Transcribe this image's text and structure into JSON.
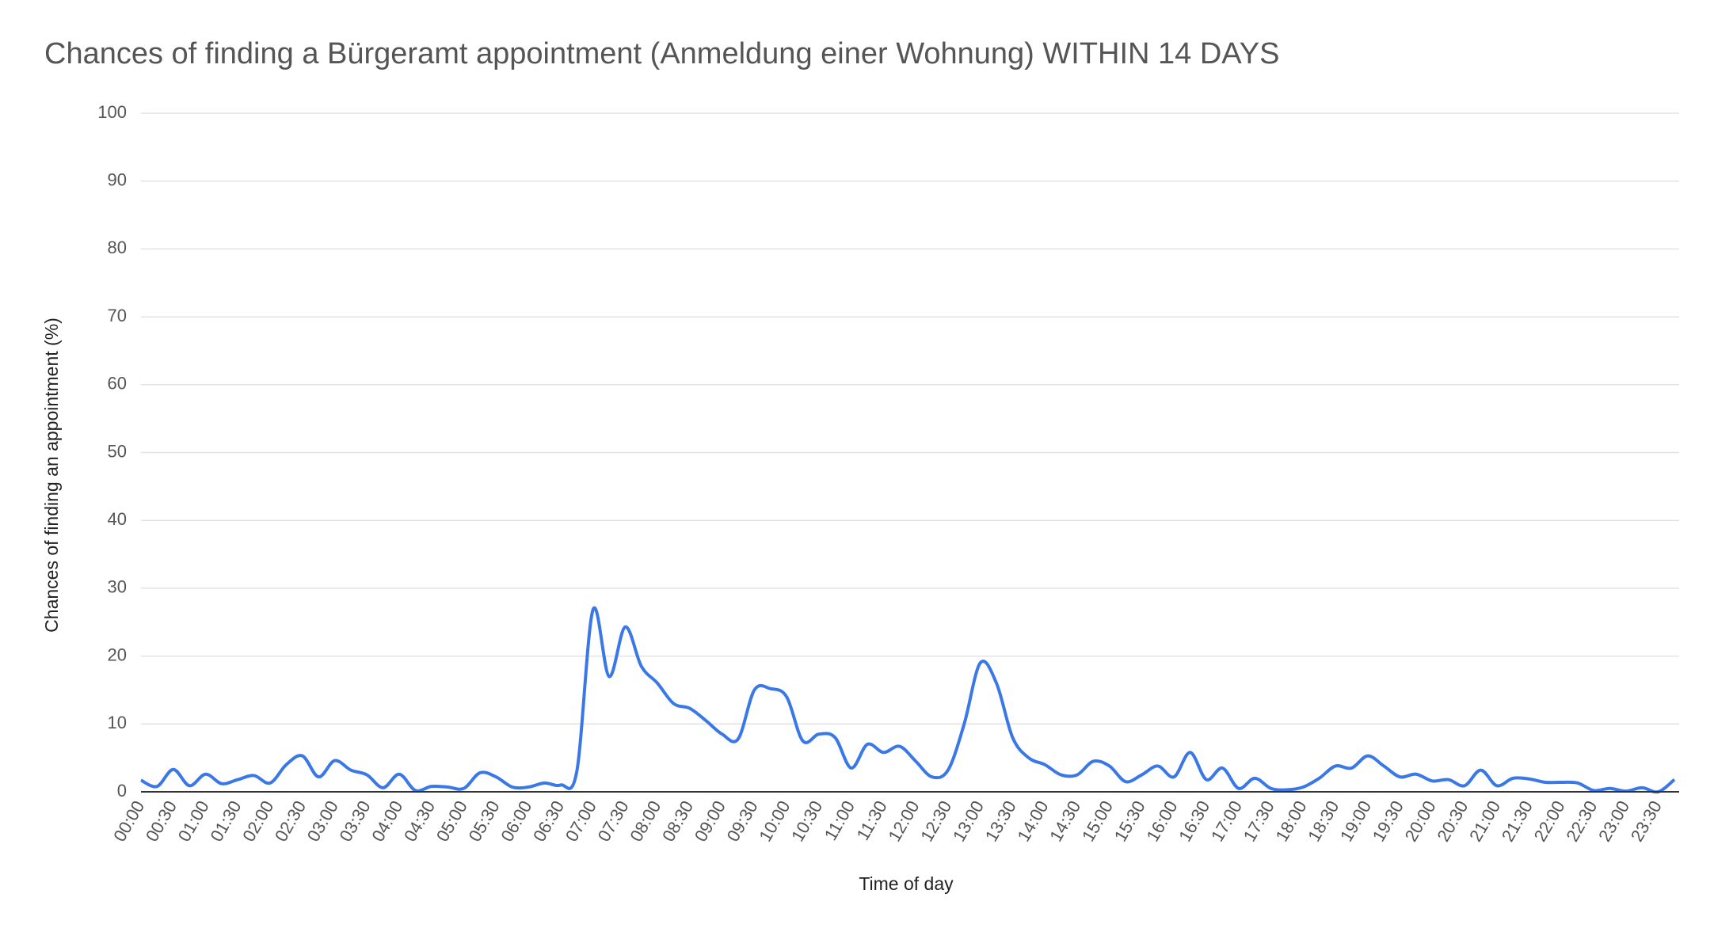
{
  "chart_data": {
    "type": "line",
    "title": "Chances of finding a Bürgeramt appointment (Anmeldung einer Wohnung) WITHIN 14 DAYS",
    "x_label": "Time of day",
    "y_label": "Chances of finding an appointment (%)",
    "categories": [
      "00:00",
      null,
      "00:30",
      null,
      "01:00",
      null,
      "01:30",
      null,
      "02:00",
      null,
      "02:30",
      null,
      "03:00",
      null,
      "03:30",
      null,
      "04:00",
      null,
      "04:30",
      null,
      "05:00",
      null,
      "05:30",
      null,
      "06:00",
      null,
      "06:30",
      null,
      "07:00",
      null,
      "07:30",
      null,
      "08:00",
      null,
      "08:30",
      null,
      "09:00",
      null,
      "09:30",
      null,
      "10:00",
      null,
      "10:30",
      null,
      "11:00",
      null,
      "11:30",
      null,
      "12:00",
      null,
      "12:30",
      null,
      "13:00",
      null,
      "13:30",
      null,
      "14:00",
      null,
      "14:30",
      null,
      "15:00",
      null,
      "15:30",
      null,
      "16:00",
      null,
      "16:30",
      null,
      "17:00",
      null,
      "17:30",
      null,
      "18:00",
      null,
      "18:30",
      null,
      "19:00",
      null,
      "19:30",
      null,
      "20:00",
      null,
      "20:30",
      null,
      "21:00",
      null,
      "21:30",
      null,
      "22:00",
      null,
      "22:30",
      null,
      "23:00",
      null,
      "23:30",
      null
    ],
    "series": [
      {
        "name": "Chances of finding an appointment (%)",
        "color": "#3b78e7",
        "values": [
          1.7,
          0.8,
          3.3,
          0.9,
          2.6,
          1.2,
          1.8,
          2.4,
          1.3,
          4.0,
          5.3,
          2.2,
          4.6,
          3.2,
          2.5,
          0.6,
          2.6,
          0.2,
          0.8,
          0.7,
          0.5,
          2.8,
          2.2,
          0.7,
          0.7,
          1.3,
          1.0,
          3.0,
          26.8,
          17.0,
          24.3,
          18.5,
          16.0,
          13.0,
          12.3,
          10.5,
          8.5,
          7.8,
          15.0,
          15.2,
          14.0,
          7.5,
          8.5,
          8.0,
          3.5,
          7.0,
          5.8,
          6.7,
          4.5,
          2.2,
          3.2,
          10.0,
          19.0,
          16.0,
          8.0,
          5.0,
          4.0,
          2.5,
          2.5,
          4.5,
          3.8,
          1.5,
          2.5,
          3.8,
          2.2,
          5.8,
          1.8,
          3.5,
          0.5,
          2.0,
          0.5,
          0.3,
          0.7,
          2.0,
          3.8,
          3.5,
          5.3,
          3.8,
          2.2,
          2.6,
          1.6,
          1.8,
          0.9,
          3.2,
          0.9,
          2.0,
          1.9,
          1.4,
          1.4,
          1.3,
          0.2,
          0.5,
          0.1,
          0.6,
          0.0,
          1.8
        ]
      }
    ],
    "ylim": [
      0,
      100
    ],
    "yticks": [
      0,
      10,
      20,
      30,
      40,
      50,
      60,
      70,
      80,
      90,
      100
    ],
    "grid": true
  }
}
